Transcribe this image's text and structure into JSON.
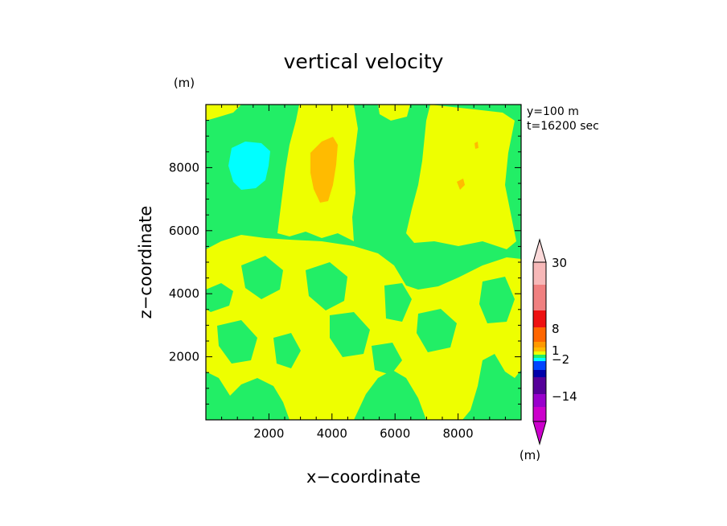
{
  "chart_data": {
    "type": "contour",
    "title": "vertical velocity",
    "xlabel": "x−coordinate",
    "ylabel": "z−coordinate",
    "x_unit": "(m)",
    "y_unit": "(m)",
    "info_lines": [
      "y=100  m",
      "t=16200 sec"
    ],
    "xlim": [
      0,
      10000
    ],
    "ylim": [
      0,
      10000
    ],
    "xticks": [
      {
        "value": 2000,
        "label": "2000"
      },
      {
        "value": 4000,
        "label": "4000"
      },
      {
        "value": 6000,
        "label": "6000"
      },
      {
        "value": 8000,
        "label": "8000"
      }
    ],
    "yticks": [
      {
        "value": 2000,
        "label": "2000"
      },
      {
        "value": 4000,
        "label": "4000"
      },
      {
        "value": 6000,
        "label": "6000"
      },
      {
        "value": 8000,
        "label": "8000"
      }
    ],
    "colorbar": {
      "unit": "(m)",
      "labels": [
        {
          "value": 30,
          "label": "30"
        },
        {
          "value": 8,
          "label": "8"
        },
        {
          "value": 1,
          "label": "1"
        },
        {
          "value": -2,
          "label": "−2"
        },
        {
          "value": -14,
          "label": "−14"
        }
      ],
      "levels": [
        {
          "name": "above-30",
          "color": "#fbd9d9"
        },
        {
          "name": "level-9",
          "color": "#f7b8b8"
        },
        {
          "name": "level-8",
          "color": "#f08080"
        },
        {
          "name": "level-7",
          "color": "#ee1111"
        },
        {
          "name": "level-6",
          "color": "#ff6600"
        },
        {
          "name": "level-5",
          "color": "#ff9900"
        },
        {
          "name": "level-4",
          "color": "#ffbb00"
        },
        {
          "name": "level-3",
          "color": "#eeff00"
        },
        {
          "name": "level-2",
          "color": "#22ee66"
        },
        {
          "name": "level-1",
          "color": "#00ffff"
        },
        {
          "name": "level-0",
          "color": "#0044ff"
        },
        {
          "name": "level-m1",
          "color": "#0000aa"
        },
        {
          "name": "level-m2",
          "color": "#550099"
        },
        {
          "name": "level-m3",
          "color": "#9900cc"
        },
        {
          "name": "below-m14",
          "color": "#cc00cc"
        }
      ]
    },
    "colors": {
      "positive_small": "#eeff00",
      "near_zero": "#22ee66",
      "negative_small": "#00ffff",
      "positive_mid": "#ffbb00"
    }
  }
}
